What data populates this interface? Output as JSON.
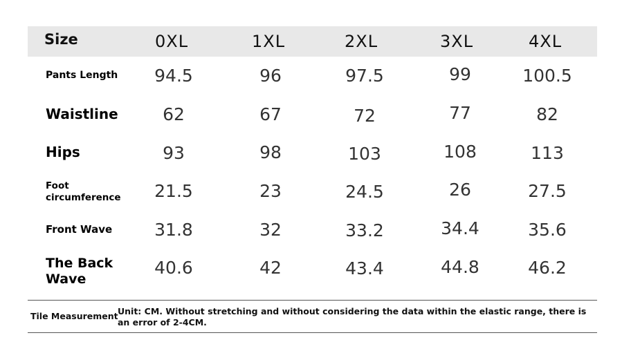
{
  "table": {
    "size_label": "Size",
    "columns": [
      "0XL",
      "1XL",
      "2XL",
      "3XL",
      "4XL"
    ],
    "rows": [
      {
        "label": "Pants Length",
        "values": [
          "94.5",
          "96",
          "97.5",
          "99",
          "100.5"
        ]
      },
      {
        "label": "Waistline",
        "values": [
          "62",
          "67",
          "72",
          "77",
          "82"
        ]
      },
      {
        "label": "Hips",
        "values": [
          "93",
          "98",
          "103",
          "108",
          "113"
        ]
      },
      {
        "label_line1": "Foot",
        "label_line2": "circumference",
        "values": [
          "21.5",
          "23",
          "24.5",
          "26",
          "27.5"
        ]
      },
      {
        "label": "Front Wave",
        "values": [
          "31.8",
          "32",
          "33.2",
          "34.4",
          "35.6"
        ]
      },
      {
        "label_line1": "The Back",
        "label_line2": "Wave",
        "values": [
          "40.6",
          "42",
          "43.4",
          "44.8",
          "46.2"
        ]
      }
    ]
  },
  "footer": {
    "label": "Tile Measurement",
    "note": "Unit: CM. Without stretching and without considering the data within the elastic range, there is an error of 2-4CM."
  }
}
